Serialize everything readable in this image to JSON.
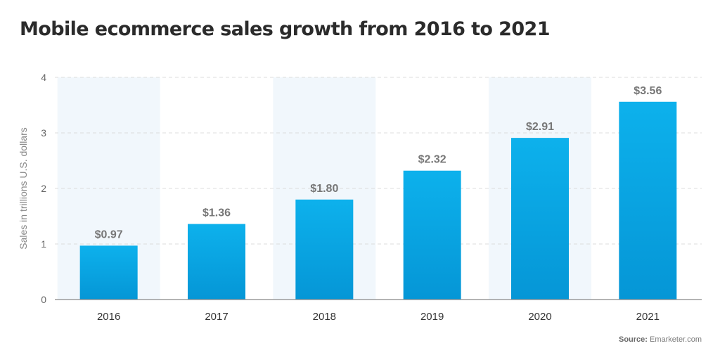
{
  "chart_data": {
    "type": "bar",
    "title": "Mobile ecommerce sales growth from 2016 to 2021",
    "xlabel": "",
    "ylabel": "Sales in trillions U.S. dollars",
    "categories": [
      "2016",
      "2017",
      "2018",
      "2019",
      "2020",
      "2021"
    ],
    "values": [
      0.97,
      1.36,
      1.8,
      2.32,
      2.91,
      3.56
    ],
    "data_labels": [
      "$0.97",
      "$1.36",
      "$1.80",
      "$2.32",
      "$2.91",
      "$3.56"
    ],
    "ylim": [
      0,
      4
    ],
    "yticks": [
      "0",
      "1",
      "2",
      "3",
      "4"
    ],
    "grid": true,
    "legend": "none",
    "colors": {
      "bar_top": "#0db1ec",
      "bar_bottom": "#0596d6",
      "band": "#f1f7fc",
      "grid": "#dcdcdc",
      "axis": "#888888"
    }
  },
  "source": {
    "label": "Source:",
    "text": "Emarketer.com"
  }
}
